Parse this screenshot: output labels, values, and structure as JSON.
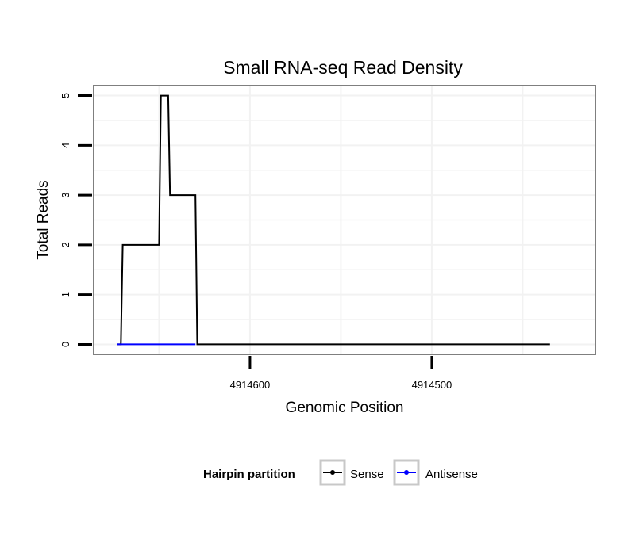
{
  "chart_data": {
    "type": "line",
    "title": "Small RNA-seq Read Density",
    "xlabel": "Genomic Position",
    "ylabel": "Total Reads",
    "x_reversed": true,
    "xlim": [
      4914686,
      4914410
    ],
    "ylim": [
      -0.2,
      5.2
    ],
    "xticks": [
      4914600,
      4914500
    ],
    "xtick_labels": [
      "4914600",
      "4914500"
    ],
    "yticks": [
      0,
      1,
      2,
      3,
      4,
      5
    ],
    "ytick_labels": [
      "0",
      "1",
      "2",
      "3",
      "4",
      "5"
    ],
    "grid": true,
    "series": [
      {
        "name": "Sense",
        "color": "#000000",
        "x": [
          4914673,
          4914671,
          4914670,
          4914650,
          4914649,
          4914645,
          4914644,
          4914630,
          4914629,
          4914628,
          4914435
        ],
        "y": [
          0,
          0,
          2,
          2,
          5,
          5,
          3,
          3,
          0,
          0,
          0
        ]
      },
      {
        "name": "Antisense",
        "color": "#0000ff",
        "x": [
          4914673,
          4914630
        ],
        "y": [
          0,
          0
        ]
      }
    ],
    "legend": {
      "title": "Hairpin partition",
      "position": "bottom",
      "entries": [
        "Sense",
        "Antisense"
      ]
    }
  }
}
